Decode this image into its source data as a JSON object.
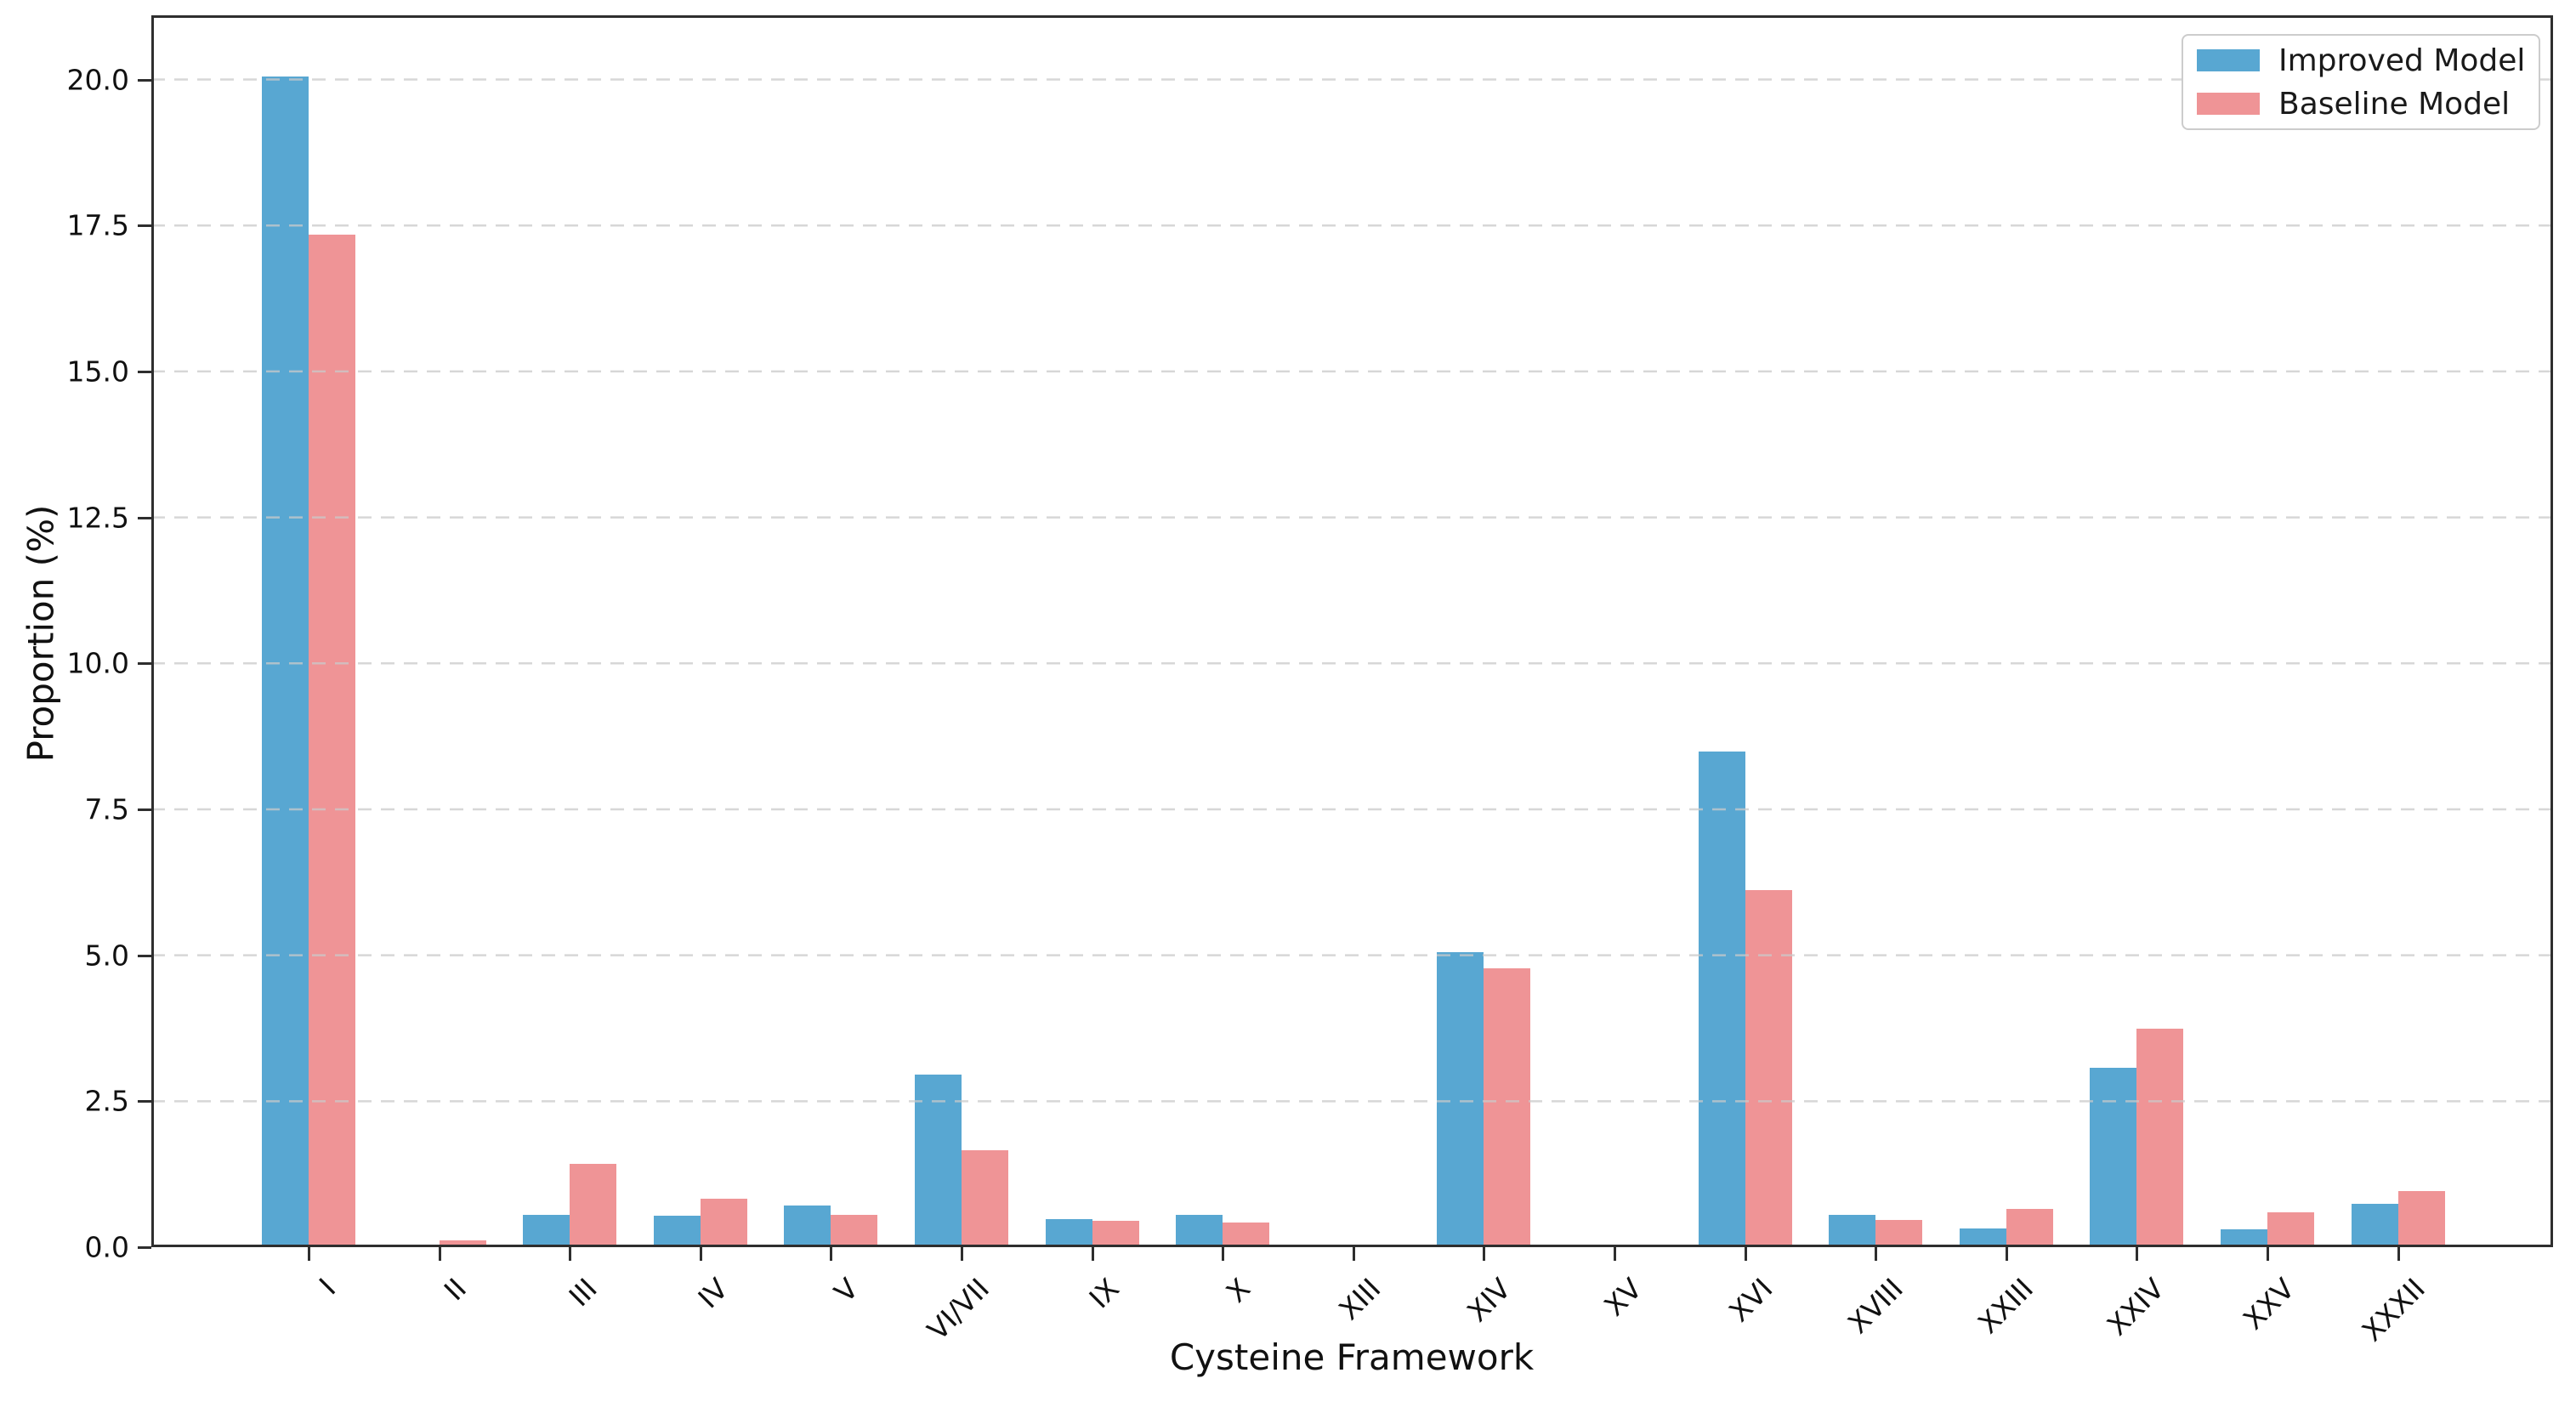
{
  "chart_data": {
    "type": "bar",
    "title": "",
    "xlabel": "Cysteine Framework",
    "ylabel": "Proportion (%)",
    "categories": [
      "I",
      "II",
      "III",
      "IV",
      "V",
      "VI/VII",
      "IX",
      "X",
      "XIII",
      "XIV",
      "XV",
      "XVI",
      "XVIII",
      "XXIII",
      "XXIV",
      "XXV",
      "XXXII"
    ],
    "series": [
      {
        "name": "Improved Model",
        "color": "#58A7D2",
        "values": [
          20.05,
          0.03,
          0.55,
          0.54,
          0.72,
          2.95,
          0.48,
          0.56,
          0.0,
          5.06,
          0.05,
          8.49,
          0.56,
          0.32,
          3.07,
          0.31,
          0.74
        ]
      },
      {
        "name": "Baseline Model",
        "color": "#EF9496",
        "values": [
          17.35,
          0.12,
          1.43,
          0.83,
          0.55,
          1.66,
          0.45,
          0.42,
          0.0,
          4.78,
          0.0,
          6.11,
          0.46,
          0.65,
          3.74,
          0.59,
          0.96
        ]
      }
    ],
    "ylim": [
      0,
      21.1
    ],
    "yticks": [
      0.0,
      2.5,
      5.0,
      7.5,
      10.0,
      12.5,
      15.0,
      17.5,
      20.0
    ],
    "ytick_labels": [
      "0.0",
      "2.5",
      "5.0",
      "7.5",
      "10.0",
      "12.5",
      "15.0",
      "17.5",
      "20.0"
    ],
    "grid": "y-dashed",
    "grid_color": "#c9c9c9",
    "legend_position": "upper-right",
    "x_tick_rotation_deg": 45
  }
}
